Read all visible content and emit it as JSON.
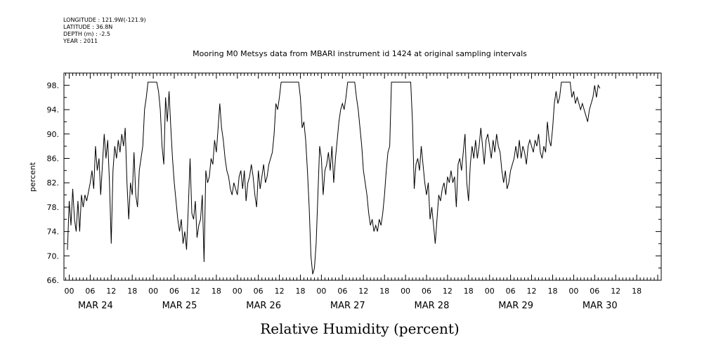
{
  "header": {
    "lines": [
      "LONGITUDE : 121.9W(-121.9)",
      "LATITUDE : 36.8N",
      "DEPTH (m) : -2.5",
      "YEAR : 2011"
    ]
  },
  "chart_data": {
    "type": "line",
    "title": "Mooring M0 Metsys data from MBARI instrument id 1424 at original sampling intervals",
    "xlabel": "Relative Humidity (percent)",
    "ylabel": "percent",
    "ylim": [
      66,
      100
    ],
    "yticks": [
      66,
      70,
      74,
      78,
      82,
      86,
      90,
      94,
      98
    ],
    "ytick_labels": [
      "66.",
      "70.",
      "74.",
      "78.",
      "82.",
      "86.",
      "90.",
      "94.",
      "98."
    ],
    "x_range_hours": [
      -1.5,
      169
    ],
    "hour_labels": [
      "00",
      "06",
      "12",
      "18"
    ],
    "day_labels": [
      "MAR 24",
      "MAR 25",
      "MAR 26",
      "MAR 27",
      "MAR 28",
      "MAR 29",
      "MAR 30"
    ],
    "grid": false,
    "series": [
      {
        "points": [
          [
            -0.5,
            71
          ],
          [
            0,
            79
          ],
          [
            0.5,
            75
          ],
          [
            1,
            81
          ],
          [
            1.5,
            76
          ],
          [
            2,
            74
          ],
          [
            2.5,
            79
          ],
          [
            3,
            74
          ],
          [
            3.5,
            80
          ],
          [
            4,
            78
          ],
          [
            4.5,
            80
          ],
          [
            5,
            79
          ],
          [
            6,
            82
          ],
          [
            6.5,
            84
          ],
          [
            7,
            81
          ],
          [
            7.5,
            88
          ],
          [
            8,
            84
          ],
          [
            8.5,
            86
          ],
          [
            9,
            80
          ],
          [
            9.5,
            85
          ],
          [
            10,
            90
          ],
          [
            10.5,
            86
          ],
          [
            11,
            89
          ],
          [
            11.5,
            82
          ],
          [
            12,
            72
          ],
          [
            12.5,
            84
          ],
          [
            13,
            88
          ],
          [
            13.5,
            86
          ],
          [
            14,
            89
          ],
          [
            14.5,
            87
          ],
          [
            15,
            90
          ],
          [
            15.5,
            88
          ],
          [
            16,
            91
          ],
          [
            16.5,
            82
          ],
          [
            17,
            76
          ],
          [
            17.5,
            82
          ],
          [
            18,
            80
          ],
          [
            18.5,
            87
          ],
          [
            19,
            80
          ],
          [
            19.5,
            78
          ],
          [
            20,
            84
          ],
          [
            20.5,
            86
          ],
          [
            21,
            88
          ],
          [
            21.5,
            94
          ],
          [
            22,
            96
          ],
          [
            22.5,
            98.5
          ],
          [
            25,
            98.5
          ],
          [
            25.5,
            97
          ],
          [
            26,
            94
          ],
          [
            26.5,
            88
          ],
          [
            27,
            85
          ],
          [
            27.5,
            96
          ],
          [
            28,
            92
          ],
          [
            28.5,
            97
          ],
          [
            29,
            91
          ],
          [
            29.5,
            86
          ],
          [
            30,
            82
          ],
          [
            30.5,
            79
          ],
          [
            31,
            76
          ],
          [
            31.5,
            74
          ],
          [
            32,
            76
          ],
          [
            32.5,
            72
          ],
          [
            33,
            74
          ],
          [
            33.5,
            71
          ],
          [
            34,
            78
          ],
          [
            34.5,
            86
          ],
          [
            35,
            77
          ],
          [
            35.5,
            76
          ],
          [
            36,
            79
          ],
          [
            36.5,
            73
          ],
          [
            37,
            75
          ],
          [
            37.5,
            76
          ],
          [
            38,
            80
          ],
          [
            38.5,
            69
          ],
          [
            39,
            84
          ],
          [
            39.5,
            82
          ],
          [
            40,
            83
          ],
          [
            40.5,
            86
          ],
          [
            41,
            85
          ],
          [
            41.5,
            89
          ],
          [
            42,
            87
          ],
          [
            42.5,
            91
          ],
          [
            43,
            95
          ],
          [
            43.5,
            91
          ],
          [
            44,
            89
          ],
          [
            44.5,
            86
          ],
          [
            45,
            84
          ],
          [
            45.5,
            83
          ],
          [
            46,
            81
          ],
          [
            46.5,
            80
          ],
          [
            47,
            82
          ],
          [
            47.5,
            81
          ],
          [
            48,
            80
          ],
          [
            48.5,
            83
          ],
          [
            49,
            84
          ],
          [
            49.5,
            81
          ],
          [
            50,
            84
          ],
          [
            50.5,
            79
          ],
          [
            51,
            82
          ],
          [
            51.5,
            83
          ],
          [
            52,
            85
          ],
          [
            52.5,
            83
          ],
          [
            53,
            80
          ],
          [
            53.5,
            78
          ],
          [
            54,
            84
          ],
          [
            54.5,
            81
          ],
          [
            55,
            83
          ],
          [
            55.5,
            85
          ],
          [
            56,
            82
          ],
          [
            56.5,
            83
          ],
          [
            57,
            85
          ],
          [
            57.5,
            86
          ],
          [
            58,
            87
          ],
          [
            58.5,
            90
          ],
          [
            59,
            95
          ],
          [
            59.5,
            94
          ],
          [
            60,
            96
          ],
          [
            60.5,
            98.5
          ],
          [
            65.5,
            98.5
          ],
          [
            66,
            96
          ],
          [
            66.5,
            91
          ],
          [
            67,
            92
          ],
          [
            67.5,
            89
          ],
          [
            68,
            84
          ],
          [
            68.5,
            78
          ],
          [
            69,
            70
          ],
          [
            69.5,
            67
          ],
          [
            70,
            68
          ],
          [
            70.5,
            72
          ],
          [
            71,
            80
          ],
          [
            71.5,
            88
          ],
          [
            72,
            86
          ],
          [
            72.5,
            80
          ],
          [
            73,
            84
          ],
          [
            73.5,
            85
          ],
          [
            74,
            87
          ],
          [
            74.5,
            84
          ],
          [
            75,
            88
          ],
          [
            75.5,
            82
          ],
          [
            76,
            86
          ],
          [
            76.5,
            89
          ],
          [
            77,
            92
          ],
          [
            77.5,
            94
          ],
          [
            78,
            95
          ],
          [
            78.5,
            94
          ],
          [
            79,
            96
          ],
          [
            79.5,
            98.5
          ],
          [
            81.5,
            98.5
          ],
          [
            82,
            96
          ],
          [
            82.5,
            94
          ],
          [
            83,
            91
          ],
          [
            83.5,
            88
          ],
          [
            84,
            84
          ],
          [
            84.5,
            82
          ],
          [
            85,
            80
          ],
          [
            85.5,
            77
          ],
          [
            86,
            75
          ],
          [
            86.5,
            76
          ],
          [
            87,
            74
          ],
          [
            87.5,
            75
          ],
          [
            88,
            74
          ],
          [
            88.5,
            76
          ],
          [
            89,
            75
          ],
          [
            89.5,
            77
          ],
          [
            90,
            80
          ],
          [
            90.5,
            84
          ],
          [
            91,
            87
          ],
          [
            91.5,
            88
          ],
          [
            92,
            98.5
          ],
          [
            97.5,
            98.5
          ],
          [
            98,
            92
          ],
          [
            98.5,
            81
          ],
          [
            99,
            85
          ],
          [
            99.5,
            86
          ],
          [
            100,
            84
          ],
          [
            100.5,
            88
          ],
          [
            101,
            85
          ],
          [
            101.5,
            82
          ],
          [
            102,
            80
          ],
          [
            102.5,
            82
          ],
          [
            103,
            76
          ],
          [
            103.5,
            78
          ],
          [
            104,
            75
          ],
          [
            104.5,
            72
          ],
          [
            105,
            76
          ],
          [
            105.5,
            80
          ],
          [
            106,
            79
          ],
          [
            106.5,
            81
          ],
          [
            107,
            82
          ],
          [
            107.5,
            80
          ],
          [
            108,
            83
          ],
          [
            108.5,
            82
          ],
          [
            109,
            84
          ],
          [
            109.5,
            82
          ],
          [
            110,
            83
          ],
          [
            110.5,
            78
          ],
          [
            111,
            85
          ],
          [
            111.5,
            86
          ],
          [
            112,
            84
          ],
          [
            112.5,
            87
          ],
          [
            113,
            90
          ],
          [
            113.5,
            82
          ],
          [
            114,
            79
          ],
          [
            114.5,
            85
          ],
          [
            115,
            88
          ],
          [
            115.5,
            86
          ],
          [
            116,
            89
          ],
          [
            116.5,
            86
          ],
          [
            117,
            88
          ],
          [
            117.5,
            91
          ],
          [
            118,
            88
          ],
          [
            118.5,
            85
          ],
          [
            119,
            89
          ],
          [
            119.5,
            90
          ],
          [
            120,
            88
          ],
          [
            120.5,
            86
          ],
          [
            121,
            89
          ],
          [
            121.5,
            87
          ],
          [
            122,
            90
          ],
          [
            122.5,
            88
          ],
          [
            123,
            87
          ],
          [
            123.5,
            84
          ],
          [
            124,
            82
          ],
          [
            124.5,
            84
          ],
          [
            125,
            81
          ],
          [
            125.5,
            82
          ],
          [
            126,
            84
          ],
          [
            126.5,
            85
          ],
          [
            127,
            86
          ],
          [
            127.5,
            88
          ],
          [
            128,
            86
          ],
          [
            128.5,
            89
          ],
          [
            129,
            86
          ],
          [
            129.5,
            88
          ],
          [
            130,
            87
          ],
          [
            130.5,
            85
          ],
          [
            131,
            88
          ],
          [
            131.5,
            89
          ],
          [
            132,
            88
          ],
          [
            132.5,
            87
          ],
          [
            133,
            89
          ],
          [
            133.5,
            88
          ],
          [
            134,
            90
          ],
          [
            134.5,
            87
          ],
          [
            135,
            86
          ],
          [
            135.5,
            88
          ],
          [
            136,
            87
          ],
          [
            136.5,
            92
          ],
          [
            137,
            89
          ],
          [
            137.5,
            88
          ],
          [
            138,
            91
          ],
          [
            138.5,
            95
          ],
          [
            139,
            97
          ],
          [
            139.5,
            95
          ],
          [
            140,
            96
          ],
          [
            140.5,
            98.5
          ],
          [
            143,
            98.5
          ],
          [
            143.5,
            96
          ],
          [
            144,
            97
          ],
          [
            144.5,
            95
          ],
          [
            145,
            96
          ],
          [
            145.5,
            95
          ],
          [
            146,
            94
          ],
          [
            146.5,
            95
          ],
          [
            147,
            94
          ],
          [
            147.5,
            93
          ],
          [
            148,
            92
          ],
          [
            148.5,
            94
          ],
          [
            149,
            95
          ],
          [
            149.5,
            96
          ],
          [
            150,
            98
          ],
          [
            150.5,
            96
          ],
          [
            151,
            98
          ],
          [
            151.5,
            97.5
          ]
        ]
      }
    ]
  }
}
